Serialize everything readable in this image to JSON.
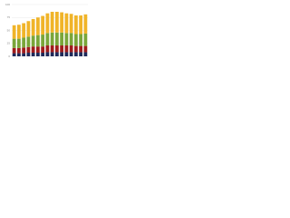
{
  "chart_data": {
    "type": "stacked-bar",
    "categories": [
      null,
      null,
      null,
      null,
      null,
      null,
      null,
      null,
      null,
      null,
      null,
      null,
      null,
      null,
      null,
      null
    ],
    "series": [
      {
        "color": "#1f2a5a",
        "values": [
          6,
          6,
          6,
          7,
          7,
          7,
          7,
          8,
          8,
          8,
          8,
          8,
          8,
          8,
          8,
          8
        ]
      },
      {
        "color": "#a01c1c",
        "values": [
          10,
          10,
          11,
          11,
          12,
          12,
          12,
          13,
          13,
          13,
          13,
          13,
          13,
          12,
          12,
          12
        ]
      },
      {
        "color": "#7aa63a",
        "values": [
          18,
          18,
          19,
          20,
          21,
          22,
          23,
          24,
          25,
          25,
          25,
          24,
          24,
          23,
          23,
          24
        ]
      },
      {
        "color": "#f0b429",
        "values": [
          26,
          27,
          28,
          30,
          32,
          34,
          36,
          38,
          40,
          40,
          39,
          38,
          37,
          36,
          36,
          37
        ]
      }
    ],
    "ylim": [
      0,
      100
    ],
    "yticks": [
      0,
      25,
      50,
      75,
      100
    ],
    "grid": true
  }
}
